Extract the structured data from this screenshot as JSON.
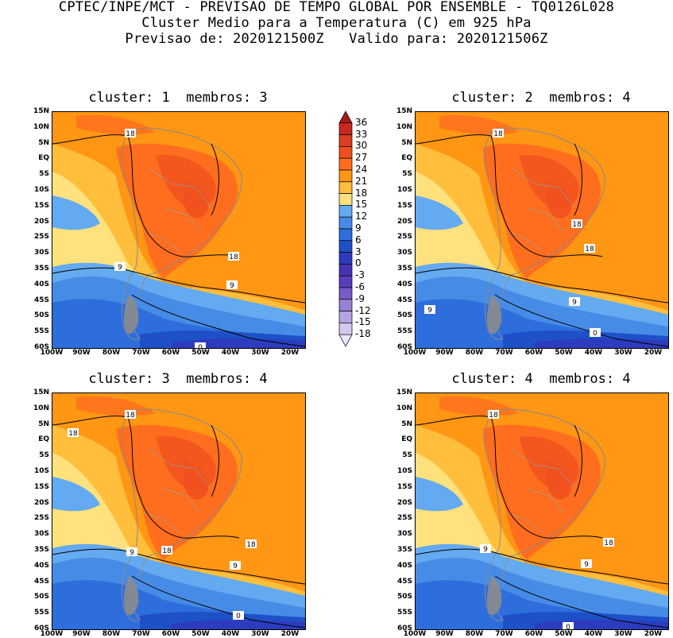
{
  "header": {
    "line1": "CPTEC/INPE/MCT - PREVISAO DE TEMPO GLOBAL POR ENSEMBLE - TQ0126L028",
    "line2": "Cluster Medio para a Temperatura (C) em 925 hPa",
    "line3": "Previsao de: 2020121500Z   Valido para: 2020121506Z"
  },
  "panels": [
    {
      "title": "cluster: 1  membros: 3",
      "contour_labels": [
        "18",
        "18",
        "9",
        "9",
        "0"
      ]
    },
    {
      "title": "cluster: 2  membros: 4",
      "contour_labels": [
        "18",
        "18",
        "18",
        "9",
        "9",
        "0"
      ]
    },
    {
      "title": "cluster: 3  membros: 4",
      "contour_labels": [
        "18",
        "18",
        "18",
        "18",
        "9",
        "9",
        "0"
      ]
    },
    {
      "title": "cluster: 4  membros: 4",
      "contour_labels": [
        "18",
        "18",
        "9",
        "9",
        "0"
      ]
    }
  ],
  "lat_ticks": [
    "15N",
    "10N",
    "5N",
    "EQ",
    "5S",
    "10S",
    "15S",
    "20S",
    "25S",
    "30S",
    "35S",
    "40S",
    "45S",
    "50S",
    "55S",
    "60S"
  ],
  "lon_ticks": [
    "100W",
    "90W",
    "80W",
    "70W",
    "60W",
    "50W",
    "40W",
    "30W",
    "20W"
  ],
  "colorbar": {
    "labels": [
      "36",
      "33",
      "30",
      "27",
      "24",
      "21",
      "18",
      "15",
      "12",
      "9",
      "6",
      "3",
      "0",
      "-3",
      "-6",
      "-9",
      "-12",
      "-15",
      "-18"
    ],
    "colors": [
      "#a51a1a",
      "#c8281e",
      "#dc3c22",
      "#f0501e",
      "#ff6e1e",
      "#ff9614",
      "#ffbe3c",
      "#ffe17d",
      "#64aaf0",
      "#468ce6",
      "#2d6edc",
      "#1e50c8",
      "#2d3cbe",
      "#4632b4",
      "#5a3cbe",
      "#785ac8",
      "#9682d2",
      "#b4a5e1",
      "#d2c8f0",
      "#ebe6fa"
    ]
  }
}
